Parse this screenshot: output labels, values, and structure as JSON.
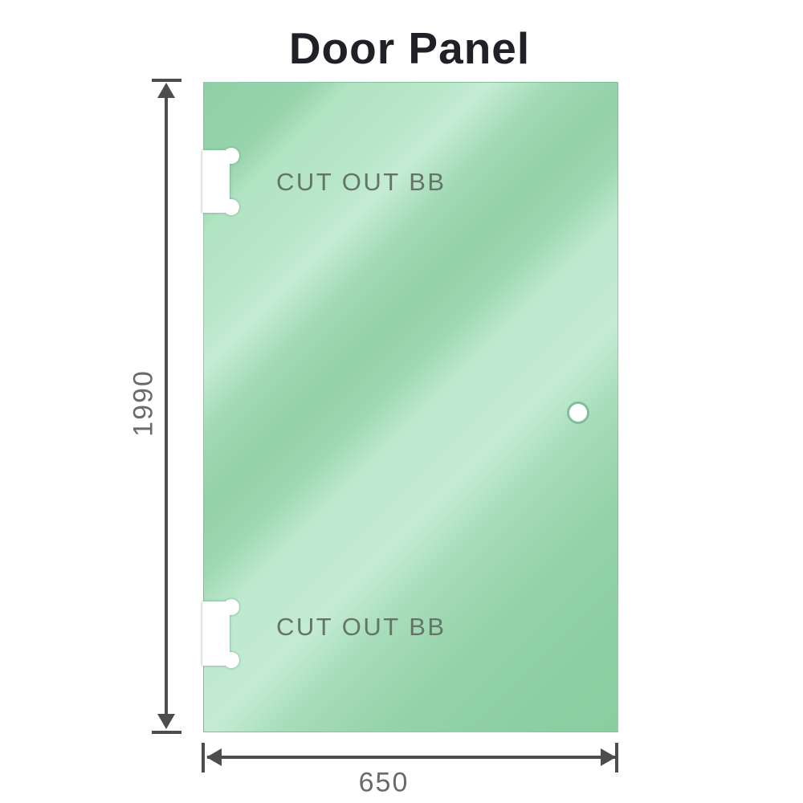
{
  "title": "Door Panel",
  "panel": {
    "cutouts": [
      {
        "position": "top-left",
        "label": "CUT OUT BB"
      },
      {
        "position": "bottom-left",
        "label": "CUT OUT BB"
      }
    ],
    "hole": {
      "shape": "circle",
      "side": "right"
    }
  },
  "dimensions": {
    "height": "1990",
    "width": "650"
  },
  "colors": {
    "glass_green_dark": "#8ccda0",
    "glass_green_light": "#c2ebd2",
    "panel_edge": "#74b092",
    "hole_ring": "#7fbe9c",
    "dimension_line": "#4d4d4d",
    "dimension_label": "#6a6a6a",
    "cutout_label": "#647568",
    "title_color": "#202126",
    "background": "#ffffff"
  }
}
